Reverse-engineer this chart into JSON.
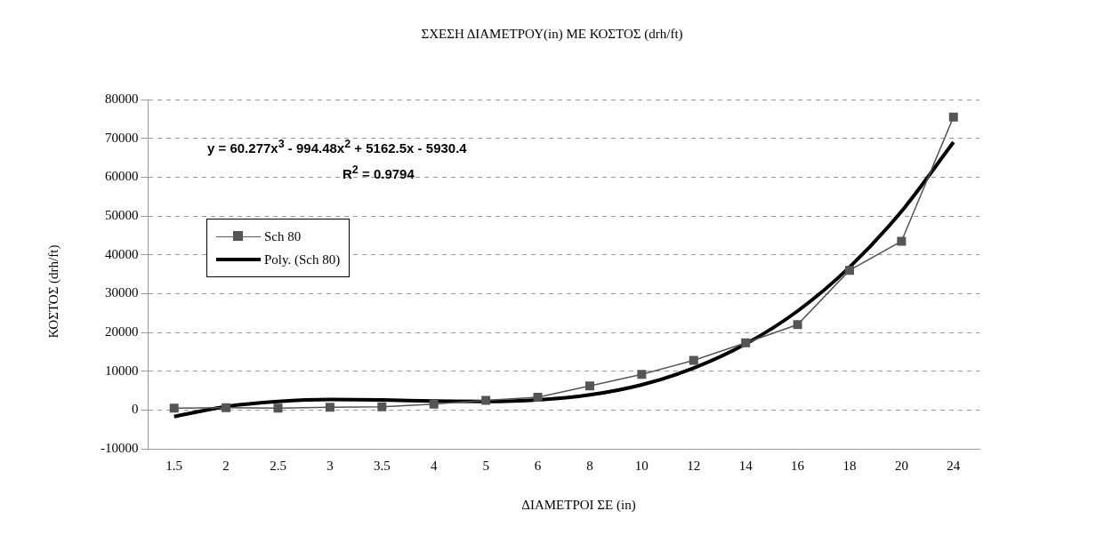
{
  "chart_data": {
    "type": "line",
    "title": "ΣΧΕΣΗ ΔΙΑΜΕΤΡΟΥ(in) ΜΕ ΚΟΣΤΟΣ (drh/ft)",
    "xlabel": "ΔΙΑΜΕΤΡΟΙ ΣΕ (in)",
    "ylabel": "ΚΟΣΤΟΣ (drh/ft)",
    "categories": [
      "1.5",
      "2",
      "2.5",
      "3",
      "3.5",
      "4",
      "5",
      "6",
      "8",
      "10",
      "12",
      "14",
      "16",
      "18",
      "20",
      "24"
    ],
    "series": [
      {
        "name": "Sch 80",
        "color": "#555555",
        "marker": "square",
        "values": [
          500,
          600,
          500,
          700,
          800,
          1500,
          2500,
          3300,
          6200,
          9200,
          12800,
          17300,
          22000,
          36000,
          43500,
          75500
        ]
      },
      {
        "name": "Poly. (Sch 80)",
        "color": "#000000",
        "marker": "none",
        "values": [
          -1700,
          900,
          2200,
          2700,
          2600,
          2300,
          2200,
          2600,
          3900,
          6500,
          10800,
          17000,
          25500,
          36800,
          51200,
          69000
        ]
      }
    ],
    "ylim": [
      -10000,
      80000
    ],
    "yticks": [
      -10000,
      0,
      10000,
      20000,
      30000,
      40000,
      50000,
      60000,
      70000,
      80000
    ],
    "grid": "y",
    "legend": "left",
    "annotations": [
      "y = 60.277x$^{3}$ - 994.48x$^{2}$ + 5162.5x - 5930.4",
      "R$^{2}$ = 0.9794"
    ]
  }
}
